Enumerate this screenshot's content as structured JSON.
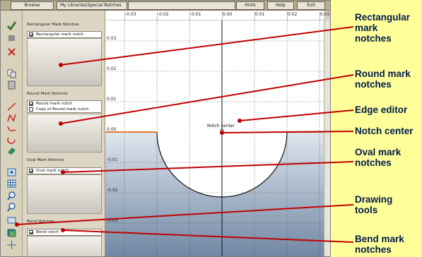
{
  "menu": {
    "browse": "Browse",
    "path": "My Libraries\\Special Notches",
    "hints": "Hints",
    "help": "Help",
    "exit": "Exit"
  },
  "tools": [
    {
      "icon": "check-icon",
      "color": "#3a7d2e"
    },
    {
      "icon": "square-icon",
      "color": "#8c8c8c"
    },
    {
      "icon": "delete-icon",
      "color": "#cc2222"
    },
    {
      "icon": "copy-icon",
      "color": "#555"
    },
    {
      "icon": "paste-icon",
      "color": "#555"
    },
    {
      "icon": "line-tool-icon",
      "color": "#cc2222"
    },
    {
      "icon": "polyline-tool-icon",
      "color": "#cc2222"
    },
    {
      "icon": "arc-tool-icon",
      "color": "#cc2222"
    },
    {
      "icon": "circle-arc-tool-icon",
      "color": "#cc2222"
    },
    {
      "icon": "eraser-icon",
      "color": "#2a8a5a"
    },
    {
      "icon": "snap-icon",
      "color": "#2a6aa0"
    },
    {
      "icon": "grid-icon",
      "color": "#2a6aa0"
    },
    {
      "icon": "zoom-in-icon",
      "color": "#2a6aa0"
    },
    {
      "icon": "zoom-out-icon",
      "color": "#2a6aa0"
    },
    {
      "icon": "zoom-fit-icon",
      "color": "#2a6aa0"
    },
    {
      "icon": "layers-icon",
      "color": "#2a6aa0"
    },
    {
      "icon": "move-icon",
      "color": "#2a6aa0"
    }
  ],
  "sections": [
    {
      "title": "Rectangular Mark Notches",
      "items": [
        {
          "label": "Rectangular mark notch",
          "checked": true
        }
      ]
    },
    {
      "title": "Round Mark Notches",
      "items": [
        {
          "label": "Round mark notch",
          "checked": true
        },
        {
          "label": "Copy of Round mark notch",
          "checked": false
        }
      ]
    },
    {
      "title": "Oval Mark Notches",
      "items": [
        {
          "label": "Oval mark notch",
          "checked": true
        }
      ]
    },
    {
      "title": "Bend Notches",
      "items": [
        {
          "label": "Bend notch",
          "checked": true
        }
      ]
    }
  ],
  "editor": {
    "x_ticks": [
      "-0.03",
      "-0.02",
      "-0.01",
      "0.00",
      "0.01",
      "0.02",
      "0.03"
    ],
    "y_ticks": [
      "0.03",
      "0.02",
      "0.01",
      "0.00",
      "-0.01",
      "-0.02",
      "-0.03"
    ],
    "notch_label": "Notch center",
    "edge_color": "#e07a30",
    "fill_top": "#dfe6ee",
    "fill_bottom": "#6f86a3"
  },
  "callouts": [
    {
      "lines": [
        "Rectangular",
        "mark",
        "notches"
      ]
    },
    {
      "lines": [
        "Round mark",
        "notches"
      ]
    },
    {
      "lines": [
        "Edge editor"
      ]
    },
    {
      "lines": [
        "Notch center"
      ]
    },
    {
      "lines": [
        "Oval mark",
        "notches"
      ]
    },
    {
      "lines": [
        "Drawing",
        "tools"
      ]
    },
    {
      "lines": [
        "Bend mark",
        "notches"
      ]
    }
  ]
}
